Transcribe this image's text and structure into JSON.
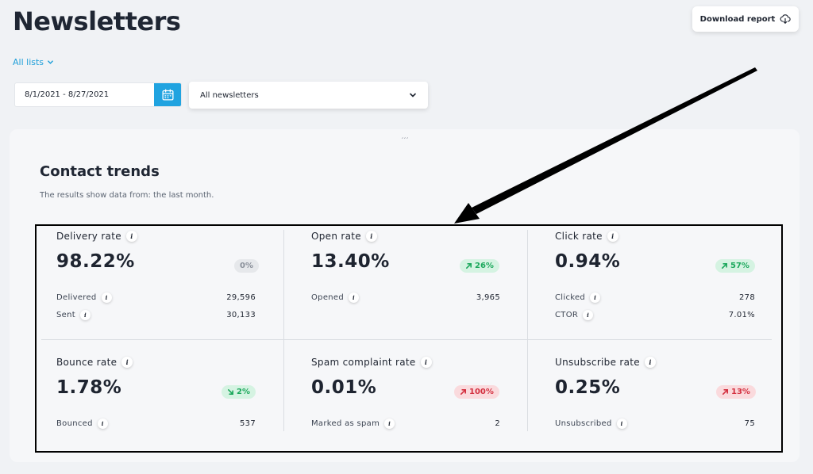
{
  "header": {
    "title": "Newsletters",
    "download_label": "Download report",
    "download_icon": "cloud-download-icon"
  },
  "filters": {
    "list_label": "All lists",
    "date_range": "8/1/2021 - 8/27/2021",
    "newsletter_select": "All newsletters"
  },
  "panel": {
    "handle": " ′′′",
    "title": "Contact trends",
    "subtitle": "The results show data from: the last month."
  },
  "metrics": [
    {
      "name": "Delivery rate",
      "value": "98.22%",
      "badge": "0%",
      "trend": "neutral",
      "rows": [
        {
          "label": "Delivered",
          "value": "29,596"
        },
        {
          "label": "Sent",
          "value": "30,133"
        }
      ]
    },
    {
      "name": "Open rate",
      "value": "13.40%",
      "badge": "26%",
      "trend": "up-good",
      "rows": [
        {
          "label": "Opened",
          "value": "3,965"
        }
      ]
    },
    {
      "name": "Click rate",
      "value": "0.94%",
      "badge": "57%",
      "trend": "up-good",
      "rows": [
        {
          "label": "Clicked",
          "value": "278"
        },
        {
          "label": "CTOR",
          "value": "7.01%"
        }
      ]
    },
    {
      "name": "Bounce rate",
      "value": "1.78%",
      "badge": "2%",
      "trend": "down-good",
      "rows": [
        {
          "label": "Bounced",
          "value": "537"
        }
      ]
    },
    {
      "name": "Spam complaint rate",
      "value": "0.01%",
      "badge": "100%",
      "trend": "up-bad",
      "rows": [
        {
          "label": "Marked as spam",
          "value": "2"
        }
      ]
    },
    {
      "name": "Unsubscribe rate",
      "value": "0.25%",
      "badge": "13%",
      "trend": "up-bad",
      "rows": [
        {
          "label": "Unsubscribed",
          "value": "75"
        }
      ]
    }
  ],
  "colors": {
    "accent": "#20a3e0",
    "good": "#1ca85c",
    "bad": "#d32f3f",
    "neutral": "#8a909a"
  }
}
